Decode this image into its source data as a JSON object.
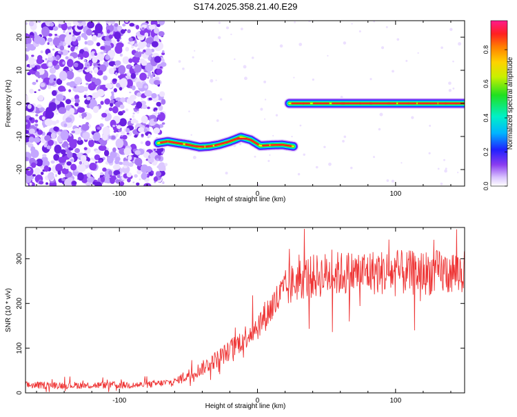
{
  "title": "S174.2025.358.21.40.E29",
  "chart_data": [
    {
      "type": "heatmap",
      "title": "S174.2025.358.21.40.E29",
      "xlabel": "Height of straight line (km)",
      "ylabel": "Frequency (Hz)",
      "xlim": [
        -168,
        150
      ],
      "ylim": [
        -25,
        25
      ],
      "xticks": [
        -100,
        0,
        100
      ],
      "yticks": [
        -20,
        -10,
        0,
        10,
        20
      ],
      "noise_region_x": [
        -168,
        -70
      ],
      "traces": [
        {
          "name": "lower trace",
          "x": [
            -72,
            -65,
            -58,
            -50,
            -42,
            -35,
            -28,
            -20,
            -12,
            -5,
            2,
            10,
            18,
            26
          ],
          "y": [
            -12,
            -11.5,
            -12,
            -12.5,
            -13.2,
            -13,
            -12.5,
            -11.5,
            -10.2,
            -11,
            -12.8,
            -12.6,
            -12.5,
            -13
          ]
        },
        {
          "name": "upper trace",
          "x": [
            23,
            150
          ],
          "y": [
            0,
            0
          ]
        }
      ],
      "colorbar": {
        "label": "Normalized spectral amplitude",
        "range": [
          0,
          0.97
        ],
        "ticks": [
          "0.0",
          "0.2",
          "0.4",
          "0.6",
          "0.8"
        ]
      }
    },
    {
      "type": "line",
      "xlabel": "Height of straight line (km)",
      "ylabel": "SNR (10 * v/v)",
      "xlim": [
        -168,
        150
      ],
      "ylim": [
        0,
        370
      ],
      "xticks": [
        -100,
        0,
        100
      ],
      "yticks": [
        0,
        100,
        200,
        300
      ],
      "series": [
        {
          "name": "SNR",
          "color": "#ee3333",
          "trend_x": [
            -168,
            -120,
            -80,
            -60,
            -40,
            -20,
            0,
            20,
            30,
            50,
            80,
            110,
            150
          ],
          "trend_y": [
            17,
            17,
            18,
            25,
            55,
            95,
            150,
            230,
            255,
            265,
            270,
            268,
            270
          ]
        }
      ]
    }
  ],
  "colors": {
    "noise": "#8a3cf0",
    "line": "#ee3333"
  }
}
